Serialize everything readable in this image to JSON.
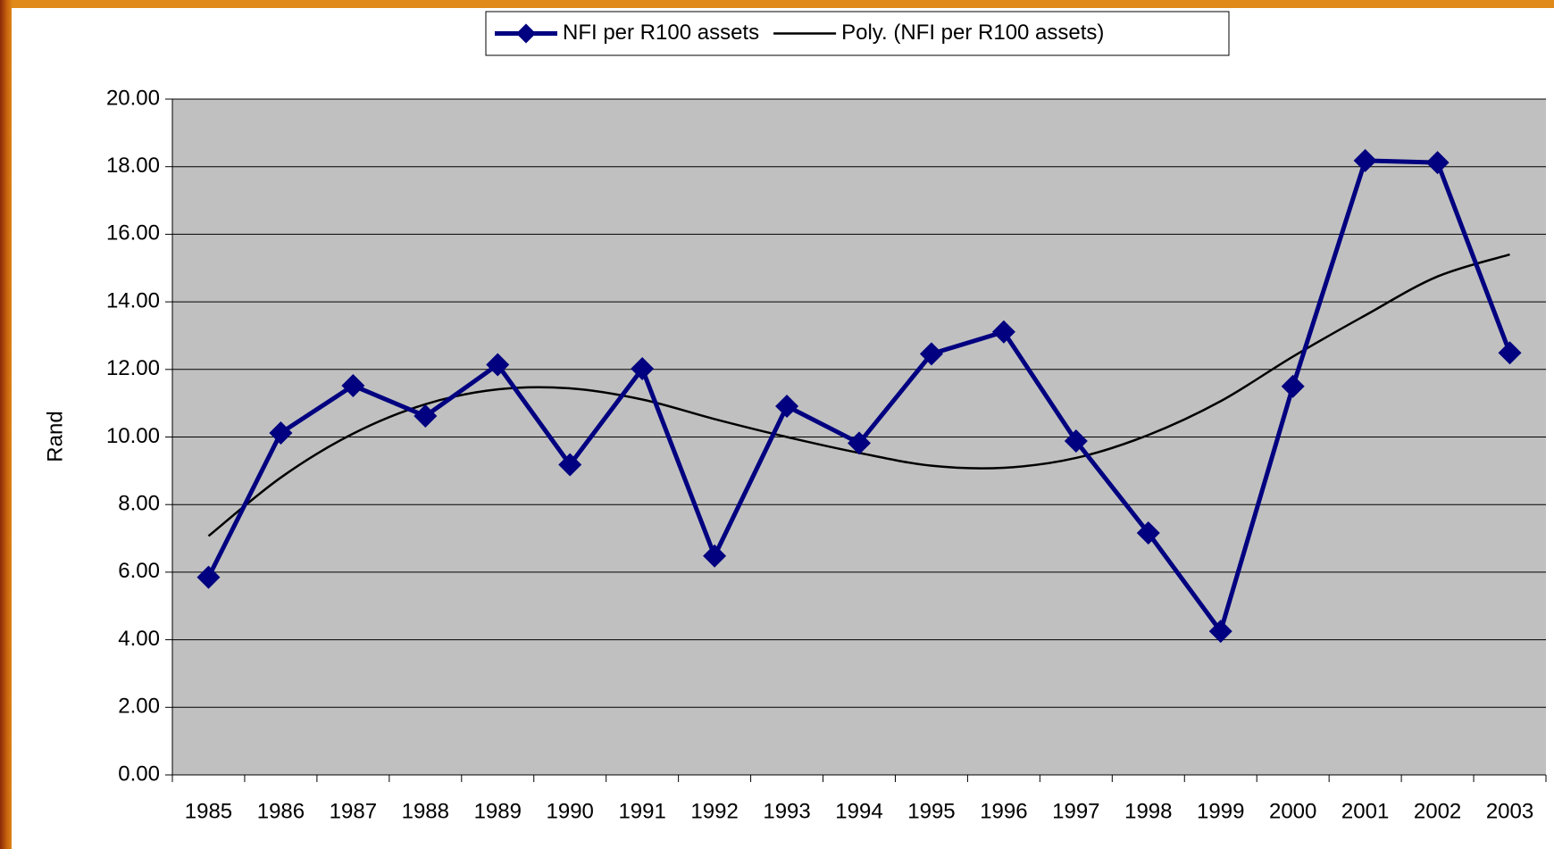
{
  "chart_data": {
    "type": "line",
    "y_label": "Rand",
    "categories": [
      "1985",
      "1986",
      "1987",
      "1988",
      "1989",
      "1990",
      "1991",
      "1992",
      "1993",
      "1994",
      "1995",
      "1996",
      "1997",
      "1998",
      "1999",
      "2000",
      "2001",
      "2002",
      "2003"
    ],
    "series": [
      {
        "name": "NFI per R100 assets",
        "color": "#000080",
        "marker": "diamond",
        "values": [
          5.85,
          10.12,
          11.52,
          10.62,
          12.14,
          9.18,
          12.02,
          6.48,
          10.91,
          9.82,
          12.46,
          13.11,
          9.88,
          7.16,
          4.25,
          11.5,
          18.18,
          18.12,
          12.49
        ]
      },
      {
        "name": "Poly. (NFI per R100 assets)",
        "color": "#000000",
        "marker": "none",
        "values": [
          7.07,
          8.8,
          10.1,
          10.97,
          11.41,
          11.44,
          11.11,
          10.53,
          10.0,
          9.53,
          9.15,
          9.09,
          9.38,
          10.06,
          11.06,
          12.38,
          13.6,
          14.75,
          15.4
        ]
      }
    ],
    "ylim": [
      0,
      20
    ],
    "yticks": [
      {
        "value": 0,
        "label": "0.00"
      },
      {
        "value": 2,
        "label": "2.00"
      },
      {
        "value": 4,
        "label": "4.00"
      },
      {
        "value": 6,
        "label": "6.00"
      },
      {
        "value": 8,
        "label": "8.00"
      },
      {
        "value": 10,
        "label": "10.00"
      },
      {
        "value": 12,
        "label": "12.00"
      },
      {
        "value": 14,
        "label": "14.00"
      },
      {
        "value": 16,
        "label": "16.00"
      },
      {
        "value": 18,
        "label": "18.00"
      },
      {
        "value": 20,
        "label": "20.00"
      }
    ],
    "grid": true,
    "legend": "top"
  }
}
